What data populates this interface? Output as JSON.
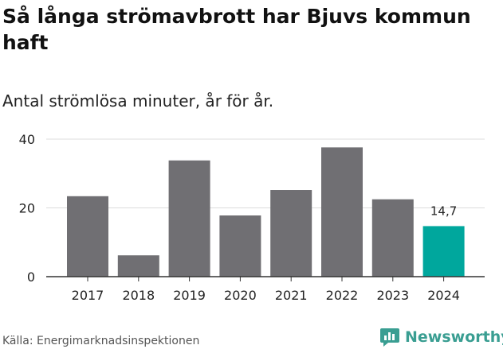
{
  "title": "Så långa strömavbrott har Bjuvs kommun haft",
  "subtitle": "Antal strömlösa minuter, år för år.",
  "source": "Källa: Energimarknadsinspektionen",
  "brand": {
    "name": "Newsworthy",
    "icon": "newsworthy-logo-icon",
    "color": "#3a9e92"
  },
  "colors": {
    "bar": "#706f73",
    "highlight": "#00a79d",
    "grid": "#dcdcdc",
    "axis": "#333333"
  },
  "chart_data": {
    "type": "bar",
    "categories": [
      "2017",
      "2018",
      "2019",
      "2020",
      "2021",
      "2022",
      "2023",
      "2024"
    ],
    "values": [
      23.4,
      6.2,
      33.8,
      17.8,
      25.2,
      37.6,
      22.5,
      14.7
    ],
    "title": "Så långa strömavbrott har Bjuvs kommun haft",
    "subtitle": "Antal strömlösa minuter, år för år.",
    "ylim": [
      0,
      40
    ],
    "yticks": [
      0,
      20,
      40
    ],
    "grid": true,
    "highlight_index": 7,
    "data_labels": [
      {
        "index": 7,
        "text": "14,7"
      }
    ]
  }
}
